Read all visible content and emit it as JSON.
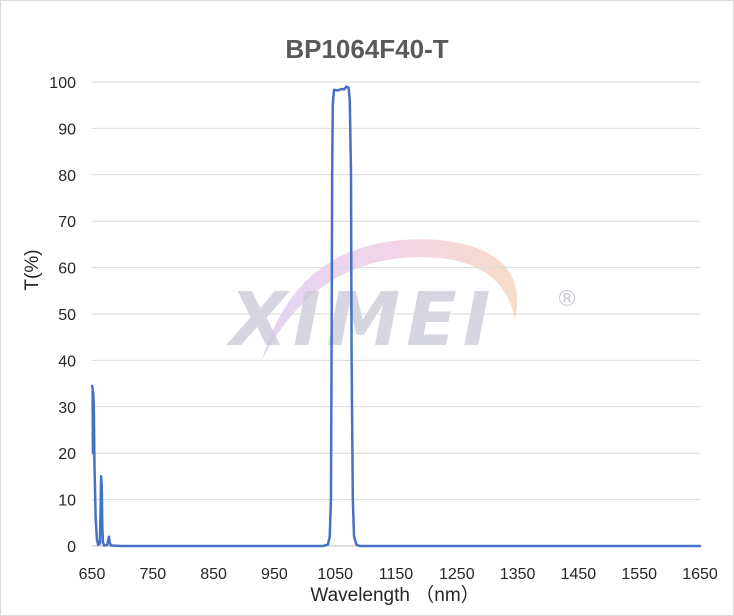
{
  "watermark": {
    "text": "XIMEI",
    "registered": "®"
  },
  "chart_data": {
    "type": "line",
    "title": "BP1064F40-T",
    "xlabel": "Wavelength （nm）",
    "ylabel": "T(%)",
    "xlim": [
      650,
      1650
    ],
    "ylim": [
      0,
      100
    ],
    "xticks": [
      "650",
      "750",
      "850",
      "950",
      "1050",
      "1150",
      "1250",
      "1350",
      "1450",
      "1550",
      "1650"
    ],
    "yticks": [
      "0",
      "10",
      "20",
      "30",
      "40",
      "50",
      "60",
      "70",
      "80",
      "90",
      "100"
    ],
    "grid": true,
    "color": "#4472c4",
    "series": [
      {
        "points": [
          [
            650,
            34.5
          ],
          [
            651,
            34
          ],
          [
            651.5,
            20
          ],
          [
            652,
            33
          ],
          [
            653,
            30
          ],
          [
            654,
            18
          ],
          [
            656,
            6
          ],
          [
            658,
            1.5
          ],
          [
            660,
            0.3
          ],
          [
            663,
            0.5
          ],
          [
            664,
            7
          ],
          [
            665,
            15
          ],
          [
            666,
            13
          ],
          [
            667,
            4
          ],
          [
            668,
            0.8
          ],
          [
            670,
            0.1
          ],
          [
            675,
            0.2
          ],
          [
            677,
            1.5
          ],
          [
            678,
            2
          ],
          [
            679,
            0.8
          ],
          [
            681,
            0.1
          ],
          [
            700,
            0
          ],
          [
            800,
            0
          ],
          [
            900,
            0
          ],
          [
            1000,
            0
          ],
          [
            1030,
            0
          ],
          [
            1038,
            0.3
          ],
          [
            1041,
            2
          ],
          [
            1043,
            10
          ],
          [
            1044,
            40
          ],
          [
            1045,
            80
          ],
          [
            1046,
            95
          ],
          [
            1048,
            98.3
          ],
          [
            1055,
            98.2
          ],
          [
            1060,
            98.5
          ],
          [
            1065,
            98.4
          ],
          [
            1068,
            99
          ],
          [
            1072,
            98.8
          ],
          [
            1074,
            96
          ],
          [
            1076,
            80
          ],
          [
            1077,
            40
          ],
          [
            1079,
            10
          ],
          [
            1081,
            2
          ],
          [
            1085,
            0.3
          ],
          [
            1090,
            0
          ],
          [
            1200,
            0
          ],
          [
            1400,
            0
          ],
          [
            1650,
            0
          ]
        ]
      }
    ]
  }
}
